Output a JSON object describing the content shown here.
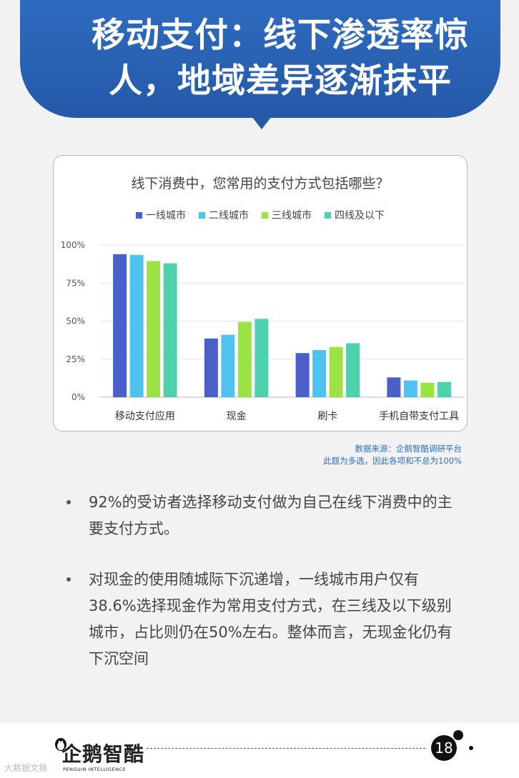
{
  "header": {
    "title_line1": "移动支付：线下渗透率惊",
    "title_line2": "人，地域差异逐渐抹平",
    "bg_color": "#2f6bbf"
  },
  "chart_data": {
    "type": "bar",
    "title": "线下消费中，您常用的支付方式包括哪些？",
    "categories": [
      "移动支付应用",
      "现金",
      "刷卡",
      "手机自带支付工具"
    ],
    "series": [
      {
        "name": "一线城市",
        "color": "#4a5fc7",
        "values": [
          94,
          38.6,
          29,
          13
        ]
      },
      {
        "name": "二线城市",
        "color": "#4fc3f0",
        "values": [
          93.5,
          41,
          31,
          11
        ]
      },
      {
        "name": "三线城市",
        "color": "#9be342",
        "values": [
          89.5,
          49.5,
          33,
          9.5
        ]
      },
      {
        "name": "四线及以下",
        "color": "#4fd1ae",
        "values": [
          88,
          51.5,
          35.5,
          10
        ]
      }
    ],
    "ylim": [
      0,
      100
    ],
    "yticks": [
      "0%",
      "25%",
      "50%",
      "75%",
      "100%"
    ],
    "ytick_values": [
      0,
      25,
      50,
      75,
      100
    ],
    "grid": true,
    "legend_position": "top"
  },
  "source": {
    "line1": "数据来源：企鹅智酷调研平台",
    "line2": "此题为多选，因此各项和不总为100%"
  },
  "bullets": [
    "92%的受访者选择移动支付做为自己在线下消费中的主要支付方式。",
    "对现金的使用随城际下沉递增，一线城市用户仅有38.6%选择现金作为常用支付方式，在三线及以下级别城市，占比则仍在50%左右。整体而言，无现金化仍有下沉空间"
  ],
  "footer": {
    "logo_text": "企鹅智酷",
    "logo_sub": "PENGUIN INTELLIGENCE",
    "page_number": "18",
    "watermark": "大数据文摘"
  }
}
